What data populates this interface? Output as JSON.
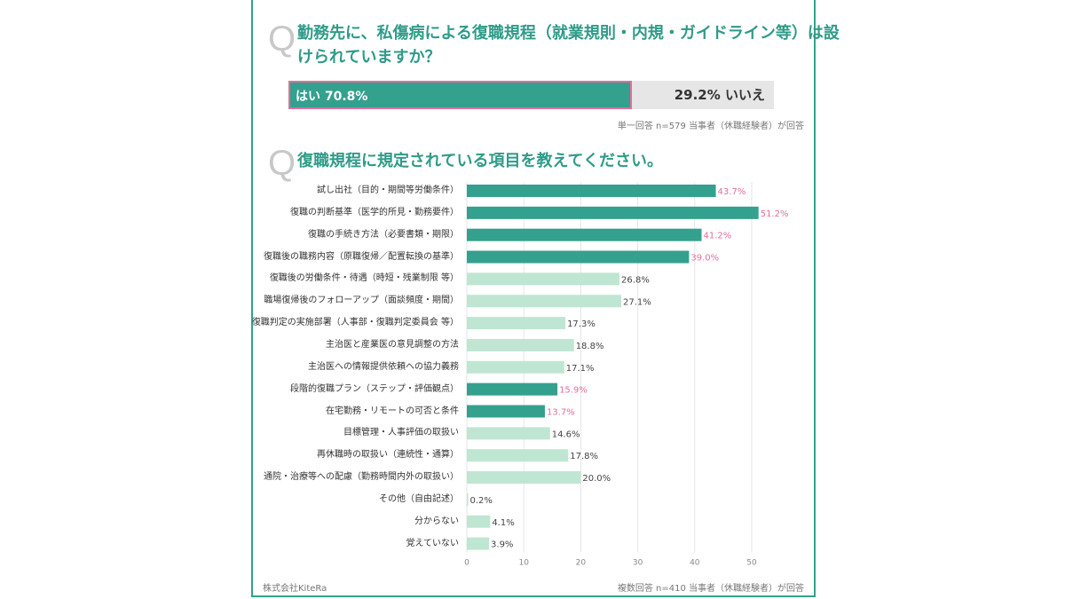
{
  "colors": {
    "frame": "#34a08e",
    "accent_bar": "#34a08e",
    "light_bar": "#bfe6d3",
    "highlight_label": "#e0709a",
    "normal_label": "#444444",
    "title": "#2f9b88",
    "q_mark": "#c8c8c8",
    "grid": "#e6e6e6"
  },
  "question1": {
    "mark": "Q",
    "title_line1": "勤務先に、私傷病による復職規程（就業規則・内規・ガイドライン等）は設",
    "title_line2": "けられていますか？",
    "yes_label": "はい 70.8%",
    "no_label": "29.2% いいえ",
    "note": "単一回答 n=579 当事者（休職経験者）が回答"
  },
  "question2": {
    "mark": "Q",
    "title": "復職規程に規定されている項目を教えてください。",
    "note": "複数回答 n=410 当事者（休職経験者）が回答"
  },
  "footer": {
    "company": "株式会社KiteRa"
  },
  "chart_data": [
    {
      "type": "bar",
      "orientation": "horizontal-stacked",
      "title": "勤務先に、私傷病による復職規程（就業規則・内規・ガイドライン等）は設けられていますか？",
      "categories": [
        "はい",
        "いいえ"
      ],
      "values": [
        70.8,
        29.2
      ],
      "unit": "%"
    },
    {
      "type": "bar",
      "orientation": "horizontal",
      "title": "復職規程に規定されている項目を教えてください。",
      "xlim": [
        0,
        55
      ],
      "xticks": [
        0,
        10,
        20,
        30,
        40,
        50
      ],
      "xtick_labels": [
        "0",
        "10",
        "20",
        "30",
        "40",
        "50"
      ],
      "grid": true,
      "categories": [
        "試し出社（目的・期間等労働条件）",
        "復職の判断基準（医学的所見・勤務要件）",
        "復職の手続き方法（必要書類・期限）",
        "復職後の職務内容（原職復帰／配置転換の基準）",
        "復職後の労働条件・待遇（時短・残業制限 等）",
        "職場復帰後のフォローアップ（面談頻度・期間）",
        "復職判定の実施部署（人事部・復職判定委員会 等）",
        "主治医と産業医の意見調整の方法",
        "主治医への情報提供依頼への協力義務",
        "段階的復職プラン（ステップ・評価観点）",
        "在宅勤務・リモートの可否と条件",
        "目標管理・人事評価の取扱い",
        "再休職時の取扱い（連続性・通算）",
        "通院・治療等への配慮（勤務時間内外の取扱い）",
        "その他（自由記述）",
        "分からない",
        "覚えていない"
      ],
      "values": [
        43.7,
        51.2,
        41.2,
        39.0,
        26.8,
        27.1,
        17.3,
        18.8,
        17.1,
        15.9,
        13.7,
        14.6,
        17.8,
        20.0,
        0.2,
        4.1,
        3.9
      ],
      "value_labels": [
        "43.7%",
        "51.2%",
        "41.2%",
        "39.0%",
        "26.8%",
        "27.1%",
        "17.3%",
        "18.8%",
        "17.1%",
        "15.9%",
        "13.7%",
        "14.6%",
        "17.8%",
        "20.0%",
        "0.2%",
        "4.1%",
        "3.9%"
      ],
      "highlighted": [
        true,
        true,
        true,
        true,
        false,
        false,
        false,
        false,
        false,
        true,
        true,
        false,
        false,
        false,
        false,
        false,
        false
      ],
      "unit": "%"
    }
  ]
}
